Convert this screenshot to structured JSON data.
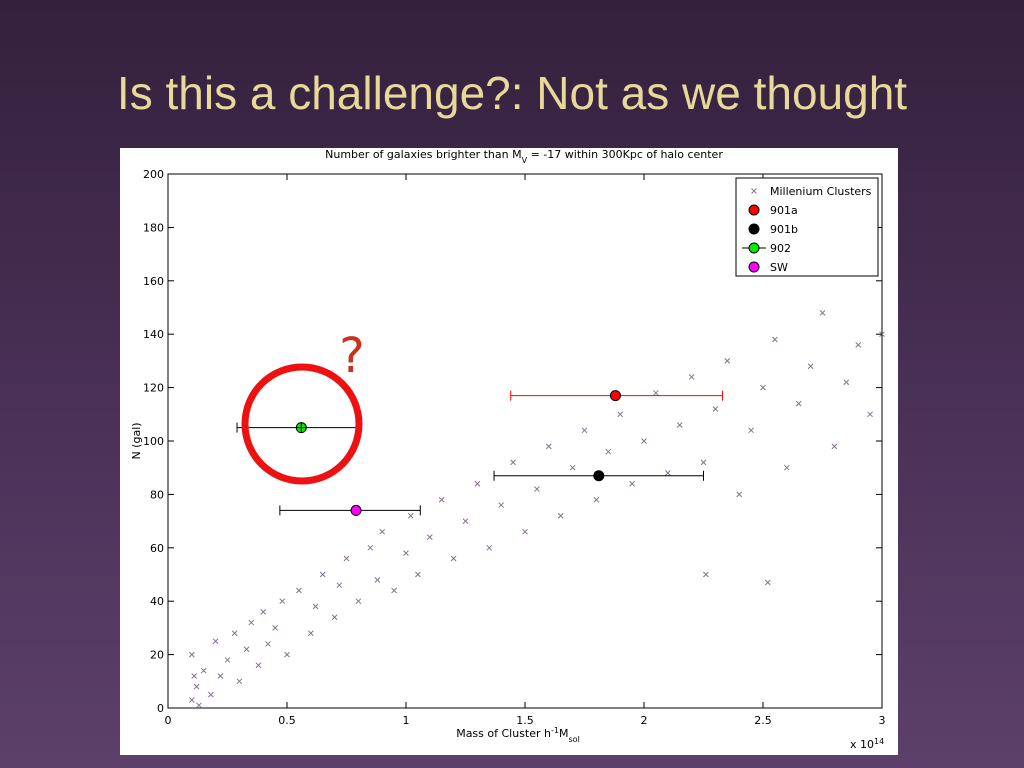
{
  "title": "Is this a challenge?: Not as we thought",
  "chart_data": {
    "type": "scatter",
    "title": [
      "Number of galaxies brighter than M",
      "V",
      " = -17 within 300Kpc of halo center"
    ],
    "xlabel": [
      "Mass of Cluster h",
      "-1",
      "M",
      "sol"
    ],
    "ylabel": "N (gal)",
    "x_offset_label": [
      "x 10",
      "14"
    ],
    "annotation": "?",
    "xlim": [
      0,
      3
    ],
    "ylim": [
      0,
      200
    ],
    "xticks": [
      0,
      0.5,
      1,
      1.5,
      2,
      2.5,
      3
    ],
    "yticks": [
      0,
      20,
      40,
      60,
      80,
      100,
      120,
      140,
      160,
      180,
      200
    ],
    "grid": false,
    "legend": "upper right",
    "series": [
      {
        "name": "Millenium Clusters",
        "color": "#8a7090",
        "marker": "x",
        "x": [
          0.1,
          0.1,
          0.12,
          0.15,
          0.18,
          0.2,
          0.22,
          0.25,
          0.28,
          0.3,
          0.33,
          0.35,
          0.38,
          0.4,
          0.42,
          0.45,
          0.48,
          0.5,
          0.55,
          0.6,
          0.62,
          0.65,
          0.7,
          0.72,
          0.75,
          0.8,
          0.85,
          0.88,
          0.9,
          0.95,
          1.0,
          1.02,
          1.05,
          1.1,
          1.15,
          1.2,
          1.25,
          1.3,
          1.35,
          1.4,
          1.45,
          1.5,
          1.55,
          1.6,
          1.65,
          1.7,
          1.75,
          1.8,
          1.85,
          1.9,
          1.95,
          2.0,
          2.05,
          2.1,
          2.15,
          2.2,
          2.25,
          2.3,
          2.35,
          2.4,
          2.45,
          2.5,
          2.55,
          2.6,
          2.65,
          2.7,
          2.75,
          2.8,
          2.85,
          2.9,
          2.95,
          3.0,
          2.52,
          2.26,
          0.13,
          0.11
        ],
        "y": [
          3,
          20,
          8,
          14,
          5,
          25,
          12,
          18,
          28,
          10,
          22,
          32,
          16,
          36,
          24,
          30,
          40,
          20,
          44,
          28,
          38,
          50,
          34,
          46,
          56,
          40,
          60,
          48,
          66,
          44,
          58,
          72,
          50,
          64,
          78,
          56,
          70,
          84,
          60,
          76,
          92,
          66,
          82,
          98,
          72,
          90,
          104,
          78,
          96,
          110,
          84,
          100,
          118,
          88,
          106,
          124,
          92,
          112,
          130,
          80,
          104,
          120,
          138,
          90,
          114,
          128,
          148,
          98,
          122,
          136,
          110,
          140,
          47,
          50,
          1,
          12
        ]
      },
      {
        "name": "901a",
        "color": "#ff0000",
        "marker": "o",
        "x": [
          1.88
        ],
        "y": [
          117
        ],
        "x_low": [
          1.44
        ],
        "x_high": [
          2.33
        ],
        "error_color": "#ff0000"
      },
      {
        "name": "901b",
        "color": "#000000",
        "marker": "o",
        "x": [
          1.81
        ],
        "y": [
          87
        ],
        "x_low": [
          1.37
        ],
        "x_high": [
          2.25
        ],
        "error_color": "#000000"
      },
      {
        "name": "902",
        "color": "#00ee00",
        "marker": "o",
        "x": [
          0.56
        ],
        "y": [
          105
        ],
        "x_low": [
          0.29
        ],
        "x_high": [
          0.79
        ],
        "error_color": "#000000"
      },
      {
        "name": "SW",
        "color": "#ff00ff",
        "marker": "o",
        "x": [
          0.79
        ],
        "y": [
          74
        ],
        "x_low": [
          0.47
        ],
        "x_high": [
          1.06
        ],
        "error_color": "#000000"
      }
    ]
  }
}
